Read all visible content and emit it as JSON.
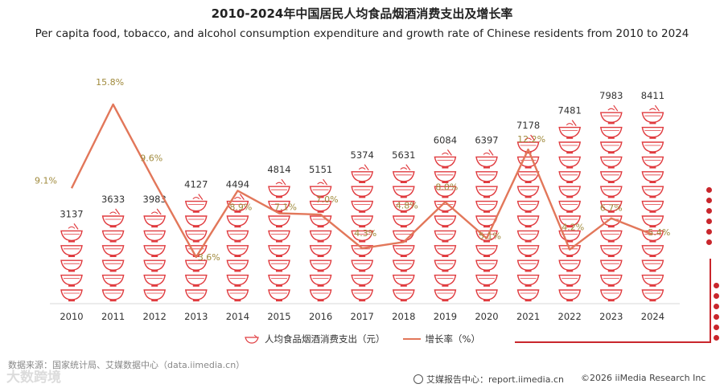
{
  "header": {
    "title": "2010-2024年中国居民人均食品烟酒消费支出及增长率",
    "subtitle": "Per capita food, tobacco, and alcohol consumption expenditure and growth rate of Chinese residents from 2010 to 2024"
  },
  "chart_data": {
    "type": "bar",
    "title": "2010-2024年中国居民人均食品烟酒消费支出及增长率",
    "categories": [
      "2010",
      "2011",
      "2012",
      "2013",
      "2014",
      "2015",
      "2016",
      "2017",
      "2018",
      "2019",
      "2020",
      "2021",
      "2022",
      "2023",
      "2024"
    ],
    "series": [
      {
        "name": "人均食品烟酒消费支出（元）",
        "type": "pictorial-bar",
        "values": [
          3137,
          3633,
          3983,
          4127,
          4494,
          4814,
          5151,
          5374,
          5631,
          6084,
          6397,
          7178,
          7481,
          7983,
          8411
        ],
        "labels": [
          "3137",
          "3633",
          "3983",
          "4127",
          "4494",
          "4814",
          "5151",
          "5374",
          "5631",
          "6084",
          "6397",
          "7178",
          "7481",
          "7983",
          "8411"
        ]
      },
      {
        "name": "增长率（%）",
        "type": "line",
        "values": [
          9.1,
          15.8,
          9.6,
          3.6,
          8.9,
          7.1,
          7.0,
          4.3,
          4.8,
          8.0,
          5.1,
          12.2,
          4.2,
          6.7,
          5.4
        ],
        "labels": [
          "9.1%",
          "15.8%",
          "9.6%",
          "3.6%",
          "8.9%",
          "7.1%",
          "7.0%",
          "4.3%",
          "4.8%",
          "8.0%",
          "5.1%",
          "12.2%",
          "4.2%",
          "6.7%",
          "5.4%"
        ]
      }
    ],
    "ylim_expenditure": [
      0,
      9000
    ],
    "ylim_rate": [
      0,
      18
    ],
    "legend_position": "bottom",
    "colors": {
      "bowl": "#e03a3e",
      "line": "#e2775a",
      "rate_label": "#a08a3c",
      "value_label": "#333333"
    }
  },
  "legend": {
    "expenditure_label": "人均食品烟酒消费支出（元）",
    "rate_label": "增长率（%）"
  },
  "footer": {
    "source": "数据来源：国家统计局、艾媒数据中心（data.iimedia.cn）",
    "watermark": "大数跨境",
    "report_site": "艾媒报告中心：report.iimedia.cn",
    "copyright": "©2026  iiMedia Research  Inc"
  }
}
